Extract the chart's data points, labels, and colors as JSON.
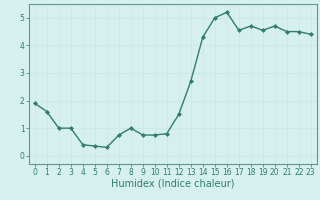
{
  "x": [
    0,
    1,
    2,
    3,
    4,
    5,
    6,
    7,
    8,
    9,
    10,
    11,
    12,
    13,
    14,
    15,
    16,
    17,
    18,
    19,
    20,
    21,
    22,
    23
  ],
  "y": [
    1.9,
    1.6,
    1.0,
    1.0,
    0.4,
    0.35,
    0.3,
    0.75,
    1.0,
    0.75,
    0.75,
    0.8,
    1.5,
    2.7,
    4.3,
    5.0,
    5.2,
    4.55,
    4.7,
    4.55,
    4.7,
    4.5,
    4.5,
    4.4
  ],
  "line_color": "#2e7d6e",
  "marker": "D",
  "markersize": 2,
  "linewidth": 1.0,
  "xlabel": "Humidex (Indice chaleur)",
  "xlabel_fontsize": 7,
  "xlim": [
    -0.5,
    23.5
  ],
  "ylim": [
    -0.3,
    5.5
  ],
  "yticks": [
    0,
    1,
    2,
    3,
    4,
    5
  ],
  "xticks": [
    0,
    1,
    2,
    3,
    4,
    5,
    6,
    7,
    8,
    9,
    10,
    11,
    12,
    13,
    14,
    15,
    16,
    17,
    18,
    19,
    20,
    21,
    22,
    23
  ],
  "bg_color": "#d6f0f0",
  "grid_color": "#c8e8e8",
  "tick_color": "#2e7d6e",
  "tick_fontsize": 5.5,
  "axes_edge_color": "#5a9a8a",
  "spine_linewidth": 0.8
}
